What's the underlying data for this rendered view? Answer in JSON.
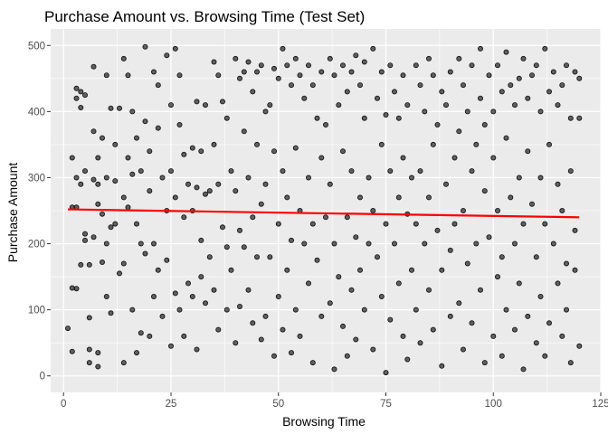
{
  "chart_data": {
    "type": "scatter",
    "title": "Purchase Amount vs. Browsing Time (Test Set)",
    "xlabel": "Browsing Time",
    "ylabel": "Purchase Amount",
    "xlim": [
      -3,
      125
    ],
    "ylim": [
      -25,
      525
    ],
    "x_ticks": [
      0,
      25,
      50,
      75,
      100,
      125
    ],
    "y_ticks": [
      0,
      100,
      200,
      300,
      400,
      500
    ],
    "grid": true,
    "panel_background": "#ebebeb",
    "point_color": "#000000",
    "point_opacity": 0.6,
    "trend_line": {
      "color": "#ff0000",
      "x": [
        1,
        120
      ],
      "y": [
        252,
        240
      ]
    },
    "points": [
      [
        1,
        72
      ],
      [
        2,
        330
      ],
      [
        2,
        255
      ],
      [
        2,
        133
      ],
      [
        2,
        37
      ],
      [
        3,
        435
      ],
      [
        3,
        420
      ],
      [
        3,
        300
      ],
      [
        3,
        255
      ],
      [
        3,
        132
      ],
      [
        4,
        430
      ],
      [
        4,
        406
      ],
      [
        4,
        290
      ],
      [
        4,
        168
      ],
      [
        5,
        425
      ],
      [
        5,
        310
      ],
      [
        5,
        215
      ],
      [
        5,
        205
      ],
      [
        6,
        168
      ],
      [
        6,
        88
      ],
      [
        6,
        40
      ],
      [
        6,
        20
      ],
      [
        7,
        468
      ],
      [
        7,
        370
      ],
      [
        7,
        297
      ],
      [
        7,
        210
      ],
      [
        8,
        330
      ],
      [
        8,
        290
      ],
      [
        8,
        260
      ],
      [
        8,
        35
      ],
      [
        8,
        14
      ],
      [
        9,
        360
      ],
      [
        9,
        245
      ],
      [
        9,
        172
      ],
      [
        10,
        455
      ],
      [
        10,
        300
      ],
      [
        10,
        200
      ],
      [
        10,
        120
      ],
      [
        11,
        405
      ],
      [
        11,
        225
      ],
      [
        11,
        95
      ],
      [
        12,
        350
      ],
      [
        12,
        295
      ],
      [
        12,
        230
      ],
      [
        13,
        405
      ],
      [
        13,
        155
      ],
      [
        14,
        480
      ],
      [
        14,
        270
      ],
      [
        14,
        170
      ],
      [
        14,
        20
      ],
      [
        15,
        455
      ],
      [
        15,
        330
      ],
      [
        15,
        255
      ],
      [
        16,
        400
      ],
      [
        16,
        305
      ],
      [
        16,
        100
      ],
      [
        17,
        360
      ],
      [
        17,
        230
      ],
      [
        17,
        35
      ],
      [
        18,
        310
      ],
      [
        18,
        200
      ],
      [
        18,
        65
      ],
      [
        19,
        498
      ],
      [
        19,
        385
      ],
      [
        19,
        185
      ],
      [
        20,
        340
      ],
      [
        20,
        280
      ],
      [
        20,
        60
      ],
      [
        21,
        460
      ],
      [
        21,
        200
      ],
      [
        21,
        120
      ],
      [
        22,
        440
      ],
      [
        22,
        375
      ],
      [
        22,
        160
      ],
      [
        23,
        300
      ],
      [
        23,
        90
      ],
      [
        24,
        485
      ],
      [
        24,
        250
      ],
      [
        24,
        175
      ],
      [
        25,
        410
      ],
      [
        25,
        310
      ],
      [
        25,
        45
      ],
      [
        26,
        495
      ],
      [
        26,
        270
      ],
      [
        26,
        125
      ],
      [
        27,
        455
      ],
      [
        27,
        380
      ],
      [
        27,
        100
      ],
      [
        28,
        335
      ],
      [
        28,
        240
      ],
      [
        28,
        60
      ],
      [
        29,
        290
      ],
      [
        29,
        140
      ],
      [
        30,
        345
      ],
      [
        30,
        250
      ],
      [
        30,
        120
      ],
      [
        31,
        415
      ],
      [
        31,
        285
      ],
      [
        31,
        40
      ],
      [
        32,
        340
      ],
      [
        32,
        205
      ],
      [
        32,
        150
      ],
      [
        33,
        410
      ],
      [
        33,
        275
      ],
      [
        33,
        110
      ],
      [
        34,
        280
      ],
      [
        34,
        180
      ],
      [
        35,
        475
      ],
      [
        35,
        350
      ],
      [
        35,
        130
      ],
      [
        36,
        455
      ],
      [
        36,
        290
      ],
      [
        36,
        70
      ],
      [
        37,
        415
      ],
      [
        37,
        225
      ],
      [
        38,
        390
      ],
      [
        38,
        195
      ],
      [
        38,
        100
      ],
      [
        39,
        310
      ],
      [
        39,
        160
      ],
      [
        40,
        480
      ],
      [
        40,
        280
      ],
      [
        40,
        50
      ],
      [
        41,
        450
      ],
      [
        41,
        220
      ],
      [
        41,
        105
      ],
      [
        42,
        460
      ],
      [
        42,
        370
      ],
      [
        42,
        195
      ],
      [
        43,
        475
      ],
      [
        43,
        300
      ],
      [
        43,
        130
      ],
      [
        44,
        430
      ],
      [
        44,
        240
      ],
      [
        44,
        80
      ],
      [
        45,
        460
      ],
      [
        45,
        350
      ],
      [
        45,
        180
      ],
      [
        46,
        470
      ],
      [
        46,
        260
      ],
      [
        46,
        55
      ],
      [
        47,
        400
      ],
      [
        47,
        290
      ],
      [
        47,
        90
      ],
      [
        48,
        410
      ],
      [
        48,
        180
      ],
      [
        49,
        465
      ],
      [
        49,
        340
      ],
      [
        49,
        30
      ],
      [
        50,
        450
      ],
      [
        50,
        230
      ],
      [
        50,
        120
      ],
      [
        51,
        495
      ],
      [
        51,
        310
      ],
      [
        51,
        70
      ],
      [
        52,
        470
      ],
      [
        52,
        270
      ],
      [
        52,
        160
      ],
      [
        53,
        440
      ],
      [
        53,
        205
      ],
      [
        53,
        35
      ],
      [
        54,
        480
      ],
      [
        54,
        345
      ],
      [
        54,
        100
      ],
      [
        55,
        455
      ],
      [
        55,
        250
      ],
      [
        55,
        60
      ],
      [
        56,
        420
      ],
      [
        56,
        200
      ],
      [
        57,
        470
      ],
      [
        57,
        300
      ],
      [
        57,
        140
      ],
      [
        58,
        440
      ],
      [
        58,
        230
      ],
      [
        58,
        20
      ],
      [
        59,
        390
      ],
      [
        59,
        175
      ],
      [
        60,
        460
      ],
      [
        60,
        330
      ],
      [
        60,
        90
      ],
      [
        61,
        380
      ],
      [
        61,
        240
      ],
      [
        62,
        480
      ],
      [
        62,
        290
      ],
      [
        62,
        110
      ],
      [
        63,
        455
      ],
      [
        63,
        200
      ],
      [
        63,
        10
      ],
      [
        64,
        410
      ],
      [
        64,
        150
      ],
      [
        65,
        470
      ],
      [
        65,
        340
      ],
      [
        65,
        75
      ],
      [
        66,
        430
      ],
      [
        66,
        240
      ],
      [
        66,
        30
      ],
      [
        67,
        460
      ],
      [
        67,
        310
      ],
      [
        67,
        130
      ],
      [
        68,
        485
      ],
      [
        68,
        210
      ],
      [
        68,
        55
      ],
      [
        69,
        440
      ],
      [
        69,
        270
      ],
      [
        69,
        160
      ],
      [
        70,
        475
      ],
      [
        70,
        390
      ],
      [
        70,
        100
      ],
      [
        71,
        300
      ],
      [
        71,
        200
      ],
      [
        72,
        495
      ],
      [
        72,
        250
      ],
      [
        72,
        40
      ],
      [
        73,
        420
      ],
      [
        73,
        180
      ],
      [
        74,
        460
      ],
      [
        74,
        350
      ],
      [
        74,
        120
      ],
      [
        75,
        395
      ],
      [
        75,
        230
      ],
      [
        75,
        5
      ],
      [
        76,
        470
      ],
      [
        76,
        310
      ],
      [
        76,
        85
      ],
      [
        77,
        430
      ],
      [
        77,
        200
      ],
      [
        78,
        390
      ],
      [
        78,
        270
      ],
      [
        78,
        140
      ],
      [
        79,
        455
      ],
      [
        79,
        330
      ],
      [
        79,
        60
      ],
      [
        80,
        410
      ],
      [
        80,
        245
      ],
      [
        80,
        25
      ],
      [
        81,
        300
      ],
      [
        81,
        160
      ],
      [
        82,
        470
      ],
      [
        82,
        230
      ],
      [
        82,
        100
      ],
      [
        83,
        440
      ],
      [
        83,
        310
      ],
      [
        83,
        50
      ],
      [
        84,
        400
      ],
      [
        84,
        200
      ],
      [
        85,
        480
      ],
      [
        85,
        270
      ],
      [
        85,
        130
      ],
      [
        86,
        455
      ],
      [
        86,
        350
      ],
      [
        86,
        70
      ],
      [
        87,
        380
      ],
      [
        87,
        220
      ],
      [
        88,
        430
      ],
      [
        88,
        160
      ],
      [
        88,
        15
      ],
      [
        89,
        410
      ],
      [
        89,
        290
      ],
      [
        90,
        460
      ],
      [
        90,
        190
      ],
      [
        90,
        90
      ],
      [
        91,
        330
      ],
      [
        91,
        230
      ],
      [
        92,
        480
      ],
      [
        92,
        370
      ],
      [
        92,
        110
      ],
      [
        93,
        440
      ],
      [
        93,
        250
      ],
      [
        93,
        40
      ],
      [
        94,
        400
      ],
      [
        94,
        170
      ],
      [
        95,
        470
      ],
      [
        95,
        310
      ],
      [
        95,
        80
      ],
      [
        96,
        350
      ],
      [
        96,
        200
      ],
      [
        97,
        495
      ],
      [
        97,
        420
      ],
      [
        97,
        130
      ],
      [
        98,
        380
      ],
      [
        98,
        280
      ],
      [
        98,
        20
      ],
      [
        99,
        455
      ],
      [
        99,
        210
      ],
      [
        100,
        400
      ],
      [
        100,
        330
      ],
      [
        100,
        60
      ],
      [
        101,
        470
      ],
      [
        101,
        250
      ],
      [
        101,
        150
      ],
      [
        102,
        430
      ],
      [
        102,
        180
      ],
      [
        102,
        30
      ],
      [
        103,
        490
      ],
      [
        103,
        360
      ],
      [
        103,
        100
      ],
      [
        104,
        440
      ],
      [
        104,
        270
      ],
      [
        105,
        410
      ],
      [
        105,
        200
      ],
      [
        105,
        70
      ],
      [
        106,
        450
      ],
      [
        106,
        300
      ],
      [
        106,
        140
      ],
      [
        107,
        480
      ],
      [
        107,
        230
      ],
      [
        107,
        10
      ],
      [
        108,
        420
      ],
      [
        108,
        340
      ],
      [
        108,
        90
      ],
      [
        109,
        455
      ],
      [
        109,
        260
      ],
      [
        110,
        470
      ],
      [
        110,
        180
      ],
      [
        110,
        50
      ],
      [
        111,
        400
      ],
      [
        111,
        300
      ],
      [
        111,
        120
      ],
      [
        112,
        495
      ],
      [
        112,
        230
      ],
      [
        112,
        30
      ],
      [
        113,
        430
      ],
      [
        113,
        350
      ],
      [
        113,
        80
      ],
      [
        114,
        460
      ],
      [
        114,
        200
      ],
      [
        115,
        410
      ],
      [
        115,
        290
      ],
      [
        115,
        140
      ],
      [
        116,
        440
      ],
      [
        116,
        250
      ],
      [
        116,
        60
      ],
      [
        117,
        470
      ],
      [
        117,
        170
      ],
      [
        117,
        100
      ],
      [
        118,
        390
      ],
      [
        118,
        310
      ],
      [
        118,
        20
      ],
      [
        119,
        460
      ],
      [
        119,
        220
      ],
      [
        119,
        160
      ],
      [
        120,
        450
      ],
      [
        120,
        390
      ],
      [
        120,
        45
      ]
    ]
  }
}
